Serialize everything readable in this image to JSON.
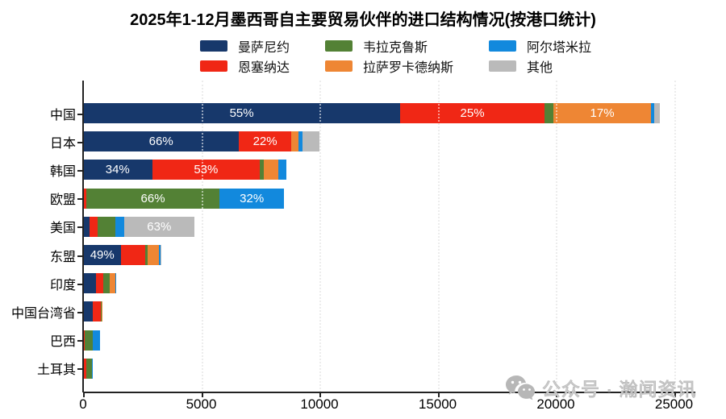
{
  "chart_data": {
    "type": "bar",
    "orientation": "horizontal-stacked",
    "title": "2025年1-12月墨西哥自主要贸易伙伴的进口结构情况(按港口统计)",
    "categories": [
      "中国",
      "日本",
      "韩国",
      "欧盟",
      "美国",
      "东盟",
      "印度",
      "中国台湾省",
      "巴西",
      "土耳其"
    ],
    "totals": [
      24400,
      10000,
      8600,
      8500,
      4700,
      3300,
      1400,
      800,
      700,
      400
    ],
    "series": [
      {
        "name": "曼萨尼约",
        "color": "#17386b",
        "values": [
          13420,
          6600,
          2920,
          40,
          280,
          1620,
          550,
          410,
          30,
          0
        ]
      },
      {
        "name": "恩塞纳达",
        "color": "#f02715",
        "values": [
          6100,
          2200,
          4560,
          90,
          330,
          1020,
          320,
          330,
          40,
          120
        ]
      },
      {
        "name": "韦拉克鲁斯",
        "color": "#538135",
        "values": [
          370,
          0,
          170,
          5650,
          750,
          100,
          240,
          30,
          350,
          240
        ]
      },
      {
        "name": "拉萨罗卡德纳斯",
        "color": "#ee8634",
        "values": [
          4150,
          300,
          600,
          0,
          0,
          460,
          240,
          30,
          0,
          0
        ]
      },
      {
        "name": "阿尔塔米拉",
        "color": "#1289dd",
        "values": [
          120,
          200,
          350,
          2720,
          380,
          70,
          50,
          0,
          280,
          40
        ]
      },
      {
        "name": "其他",
        "color": "#bababa",
        "values": [
          240,
          700,
          0,
          0,
          2960,
          30,
          0,
          0,
          0,
          0
        ]
      }
    ],
    "bar_labels": [
      [
        "55%",
        "25%",
        "",
        "17%",
        "",
        ""
      ],
      [
        "66%",
        "22%",
        "",
        "",
        "",
        ""
      ],
      [
        "34%",
        "53%",
        "",
        "",
        "",
        ""
      ],
      [
        "",
        "",
        "66%",
        "",
        "32%",
        ""
      ],
      [
        "",
        "",
        "",
        "",
        "",
        "63%"
      ],
      [
        "49%",
        "",
        "",
        "",
        "",
        ""
      ],
      [
        "",
        "",
        "",
        "",
        "",
        ""
      ],
      [
        "",
        "",
        "",
        "",
        "",
        ""
      ],
      [
        "",
        "",
        "",
        "",
        "",
        ""
      ],
      [
        "",
        "",
        "",
        "",
        "",
        ""
      ]
    ],
    "x_ticks": [
      "0",
      "5000",
      "10000",
      "15000",
      "20000",
      "25000"
    ],
    "x_tick_values": [
      0,
      5000,
      10000,
      15000,
      20000,
      25000
    ],
    "xlim": [
      0,
      25900
    ],
    "grid": "vertical-dotted",
    "legend_position": "top"
  },
  "watermark": {
    "icon": "wechat-icon",
    "text": "公众号 · 瀚闻资讯"
  }
}
